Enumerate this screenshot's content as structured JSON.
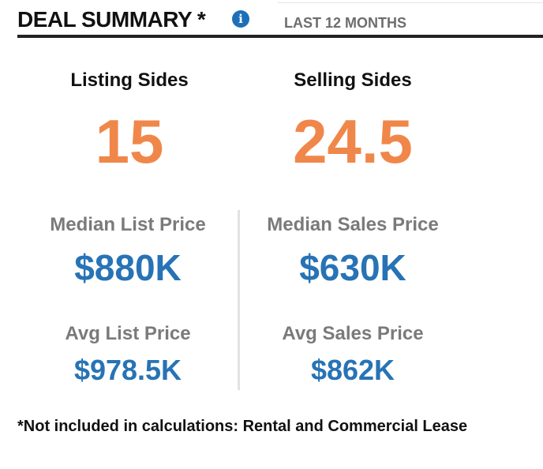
{
  "header": {
    "title": "DEAL SUMMARY *",
    "info_icon": "info-icon",
    "period": "LAST 12 MONTHS"
  },
  "listing_sides": {
    "label": "Listing Sides",
    "value": "15"
  },
  "selling_sides": {
    "label": "Selling Sides",
    "value": "24.5"
  },
  "median_list": {
    "label": "Median List Price",
    "value": "$880K"
  },
  "median_sales": {
    "label": "Median Sales Price",
    "value": "$630K"
  },
  "avg_list": {
    "label": "Avg List Price",
    "value": "$978.5K"
  },
  "avg_sales": {
    "label": "Avg Sales Price",
    "value": "$862K"
  },
  "footnote": "*Not included in calculations: Rental and Commercial Lease",
  "colors": {
    "accent_orange": "#f0874a",
    "accent_blue": "#2773b5",
    "label_gray": "#7a7a7a",
    "info_blue": "#1d6fb8"
  }
}
